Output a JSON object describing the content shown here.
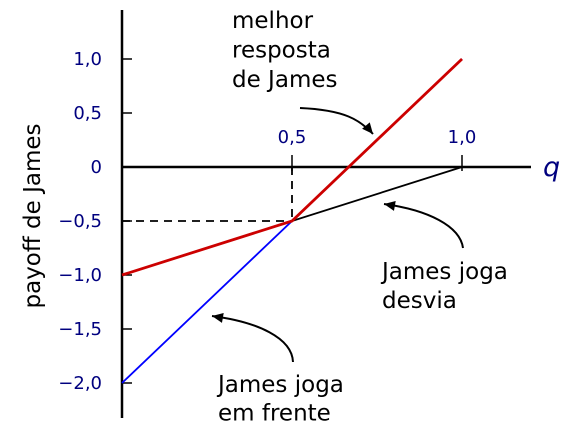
{
  "chart_data": {
    "type": "line",
    "ylabel": "payoff de James",
    "xlabel": "q",
    "xlim": [
      0,
      1.2
    ],
    "ylim": [
      -2.0,
      1.0
    ],
    "x_ticks": [
      {
        "value": 0.5,
        "label": "0,5"
      },
      {
        "value": 1.0,
        "label": "1,0"
      }
    ],
    "y_ticks": [
      {
        "value": 1.0,
        "label": "1,0"
      },
      {
        "value": 0.5,
        "label": "0,5"
      },
      {
        "value": 0.0,
        "label": "0"
      },
      {
        "value": -0.5,
        "label": "−0,5"
      },
      {
        "value": -1.0,
        "label": "−1,0"
      },
      {
        "value": -1.5,
        "label": "−1,5"
      },
      {
        "value": -2.0,
        "label": "−2,0"
      }
    ],
    "series": [
      {
        "name": "James joga em frente",
        "color": "#0000ff",
        "x": [
          0,
          1.0
        ],
        "y": [
          -2.0,
          1.0
        ]
      },
      {
        "name": "James joga desvia",
        "color": "#000000",
        "x": [
          0,
          1.0
        ],
        "y": [
          -1.0,
          0.0
        ]
      },
      {
        "name": "melhor resposta de James",
        "color": "#cc0000",
        "x": [
          0,
          0.5,
          1.0
        ],
        "y": [
          -1.0,
          -0.5,
          1.0
        ]
      }
    ],
    "guides": {
      "x": 0.5,
      "y": -0.5,
      "style": "dashed"
    },
    "annotations": [
      {
        "lines": [
          "melhor",
          "resposta",
          "de James"
        ],
        "series": "melhor resposta de James"
      },
      {
        "lines": [
          "James joga",
          "desvia"
        ],
        "series": "James joga desvia"
      },
      {
        "lines": [
          "James joga",
          "em frente"
        ],
        "series": "James joga em frente"
      }
    ]
  }
}
